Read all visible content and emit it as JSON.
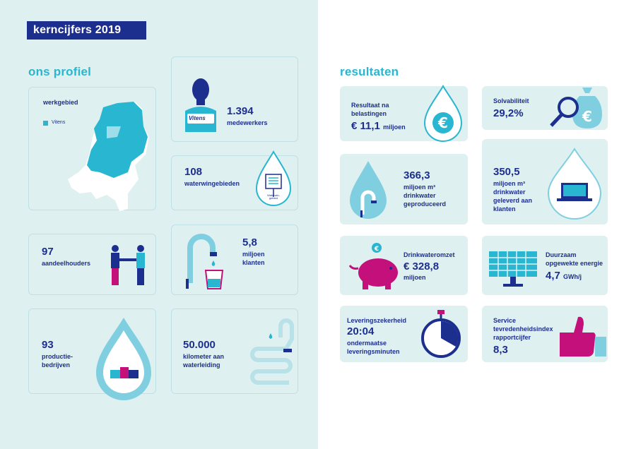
{
  "title": "kerncijfers 2019",
  "profile": {
    "heading": "ons profiel",
    "map": {
      "label": "werkgebied",
      "legend": "Vitens"
    },
    "employees": {
      "value": "1.394",
      "label": "medewerkers",
      "badge": "Vitens"
    },
    "wells": {
      "value": "108",
      "label": "waterwingebieden",
      "sign": "Waterwin-gebied"
    },
    "shareholders": {
      "value": "97",
      "label": "aandeelhouders"
    },
    "customers": {
      "value": "5,8",
      "label1": "miljoen",
      "label2": "klanten"
    },
    "plants": {
      "value": "93",
      "label1": "productie-",
      "label2": "bedrijven"
    },
    "pipes": {
      "value": "50.000",
      "label1": "kilometer aan",
      "label2": "waterleiding"
    }
  },
  "results": {
    "heading": "resultaten",
    "tax": {
      "label1": "Resultaat na",
      "label2": "belastingen",
      "value": "€ 11,1",
      "unit": "miljoen",
      "icon": "euro-drop-icon"
    },
    "solvency": {
      "label": "Solvabiliteit",
      "value": "29,2%",
      "icon": "money-bag-magnifier-icon"
    },
    "produced": {
      "value": "366,3",
      "label1": "miljoen m³",
      "label2": "drinkwater",
      "label3": "geproduceerd"
    },
    "delivered": {
      "value": "350,5",
      "label1": "miljoen m³",
      "label2": "drinkwater",
      "label3": "geleverd aan",
      "label4": "klanten"
    },
    "revenue": {
      "label": "Drinkwateromzet",
      "value": "€ 328,8",
      "unit": "miljoen"
    },
    "energy": {
      "label1": "Duurzaam",
      "label2": "opgewekte energie",
      "value": "4,7",
      "unit": "GWh/j"
    },
    "reliability": {
      "label": "Leveringszekerheid",
      "value": "20:04",
      "label2": "ondermaatse",
      "label3": "leveringsminuten"
    },
    "service": {
      "label1": "Service",
      "label2": "tevredenheidsindex",
      "label3": "rapportcijfer",
      "value": "8,3"
    }
  },
  "colors": {
    "navy": "#1d2f8e",
    "cyan": "#28b6d0",
    "magenta": "#c4107a",
    "panel": "#dff0f1"
  }
}
